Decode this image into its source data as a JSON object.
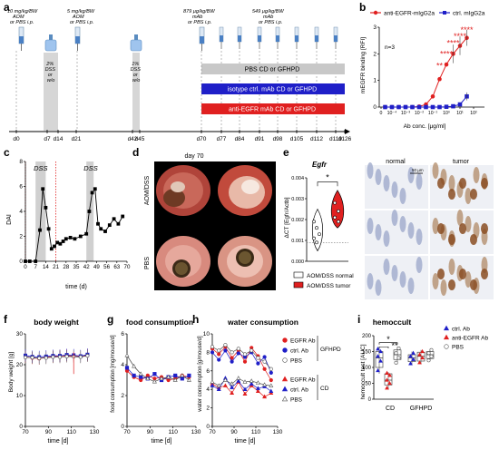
{
  "panel_letters": [
    "a",
    "b",
    "c",
    "d",
    "e",
    "f",
    "g",
    "h",
    "i"
  ],
  "panel_a": {
    "annotations": [
      {
        "lines": [
          "10 mg/kg/BW",
          "AOM",
          "or PBS i.p."
        ]
      },
      {
        "lines": [
          "5 mg/kg/BW",
          "AOM",
          "or PBS i.p."
        ]
      },
      {
        "lines": [
          "879 µg/kg/BW",
          "mAb",
          "or PBS i.p."
        ]
      },
      {
        "lines": [
          "549 µg/kg/BW",
          "mAb",
          "or PBS i.p."
        ]
      }
    ],
    "dss1_lines": [
      "2%",
      "DSS",
      "or",
      "w/o"
    ],
    "dss2_lines": [
      "1%",
      "DSS",
      "or",
      "w/o"
    ],
    "days": [
      "d0",
      "d7",
      "d14",
      "d21",
      "d42",
      "d45",
      "d70",
      "d77",
      "d84",
      "d91",
      "d98",
      "d105",
      "d112",
      "d119",
      "d126"
    ],
    "bars": [
      {
        "label": "PBS CD or GFHPD",
        "color": "#c8c8c8",
        "text_color": "#000000"
      },
      {
        "label": "isotype ctrl. mAb CD or GFHPD",
        "color": "#1f1fc8",
        "text_color": "#ffffff"
      },
      {
        "label": "anti-EGFR mAb CD or GFHPD",
        "color": "#e02020",
        "text_color": "#ffffff"
      }
    ]
  },
  "panel_b": {
    "legend": [
      "anti-EGFR-mIgG2a",
      "ctrl. mIgG2a"
    ],
    "n_label": "n=3",
    "ylabel": "mEGFR binding [RFI]",
    "xlabel": "Ab conc. [µg/ml]",
    "yticks": [
      "0",
      "1",
      "2",
      "3"
    ],
    "xticks": [
      "0",
      "10⁻⁴",
      "10⁻³",
      "10⁻²",
      "10⁻¹",
      "10⁰",
      "10¹",
      "10²"
    ],
    "colors": {
      "anti": "#e02020",
      "ctrl": "#1f1fc8"
    }
  },
  "panel_c": {
    "ylabel": "DAI",
    "xlabel": "time (d)",
    "yticks": [
      "0",
      "2",
      "4",
      "6",
      "8"
    ],
    "xticks": [
      "0",
      "7",
      "14",
      "21",
      "28",
      "35",
      "42",
      "49",
      "56",
      "63",
      "70"
    ],
    "dss_labels": [
      "DSS",
      "DSS"
    ]
  },
  "panel_d": {
    "title": "day 70",
    "row_labels": [
      "AOM/DSS",
      "PBS"
    ]
  },
  "panel_e": {
    "gene": "Egfr",
    "ylabel": "ΔCT [Egfr/Actb]",
    "yticks": [
      "0.000",
      "0.001",
      "0.002",
      "0.003",
      "0.004"
    ],
    "sig": "*",
    "legend": [
      "AOM/DSS normal",
      "AOM/DSS tumor"
    ],
    "histo_headers": [
      "normal",
      "tumor"
    ],
    "scale_bar": "50 µm"
  },
  "panel_f": {
    "title": "body weight",
    "ylabel": "Body weight [g]",
    "xlabel": "time [d]",
    "yticks": [
      "0",
      "10",
      "20",
      "30"
    ],
    "xticks": [
      "70",
      "90",
      "110",
      "130"
    ]
  },
  "panel_g": {
    "title": "food consumption",
    "ylabel": "food consumption [mg/mouse/d]",
    "xlabel": "time [d]",
    "yticks": [
      "0",
      "2",
      "4",
      "6"
    ],
    "xticks": [
      "70",
      "90",
      "110",
      "130"
    ]
  },
  "panel_h": {
    "title": "water consumption",
    "ylabel": "water consumption [g/mouse/d]",
    "xlabel": "time [d]",
    "yticks": [
      "0",
      "2",
      "4",
      "6",
      "8",
      "10"
    ],
    "xticks": [
      "70",
      "90",
      "110",
      "130"
    ],
    "legend_gfhpd": [
      "EGFR Ab",
      "ctrl. Ab",
      "PBS"
    ],
    "legend_cd": [
      "EGFR Ab",
      "ctrl. Ab",
      "PBS"
    ],
    "group_gfhpd": "GFHPD",
    "group_cd": "CD"
  },
  "panel_i": {
    "title": "hemoccult",
    "ylabel": "hemoccult test [AUC]",
    "yticks": [
      "0",
      "50",
      "100",
      "150",
      "200"
    ],
    "groups": [
      "CD",
      "GFHPD"
    ],
    "sig": [
      "*",
      "**"
    ],
    "legend": [
      "ctrl. Ab",
      "anti-EGFR Ab",
      "PBS"
    ]
  },
  "colors": {
    "red": "#e02020",
    "blue": "#1f1fc8",
    "grey": "#c8c8c8",
    "dss_shade": "#d0d0d0"
  }
}
